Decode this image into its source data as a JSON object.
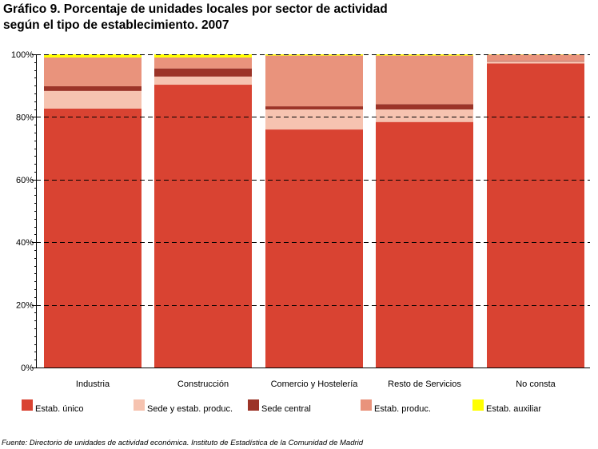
{
  "chart_data": {
    "type": "bar",
    "stacked": true,
    "title": "Gráfico 9. Porcentaje de unidades locales por sector de actividad",
    "subtitle": "según el tipo de establecimiento. 2007",
    "ylim": [
      0,
      100
    ],
    "yticks": [
      0,
      20,
      40,
      60,
      80,
      100
    ],
    "ytick_labels": [
      "0%",
      "20%",
      "40%",
      "60%",
      "80%",
      "100%"
    ],
    "grid": "horizontal dashed",
    "legend_position": "bottom",
    "categories": [
      "Industria",
      "Construcción",
      "Comercio y Hostelería",
      "Resto de Servicios",
      "No consta"
    ],
    "series": [
      {
        "name": "Estab. único",
        "color": "#d94332",
        "values": [
          82.7,
          90.3,
          76.0,
          78.4,
          97.1
        ]
      },
      {
        "name": "Sede y estab. produc.",
        "color": "#f6c3b0",
        "values": [
          5.6,
          2.6,
          6.4,
          4.0,
          0.7
        ]
      },
      {
        "name": "Sede central",
        "color": "#9c3428",
        "values": [
          1.5,
          2.6,
          1.0,
          1.7,
          0.2
        ]
      },
      {
        "name": "Estab. produc.",
        "color": "#e9937c",
        "values": [
          9.2,
          3.5,
          16.2,
          15.5,
          1.9
        ]
      },
      {
        "name": "Estab. auxiliar",
        "color": "#ffff00",
        "values": [
          1.0,
          1.0,
          0.4,
          0.4,
          0.1
        ]
      }
    ],
    "source": "Fuente: Directorio de unidades de actividad económica. Instituto de Estadística de la Comunidad de Madrid"
  }
}
